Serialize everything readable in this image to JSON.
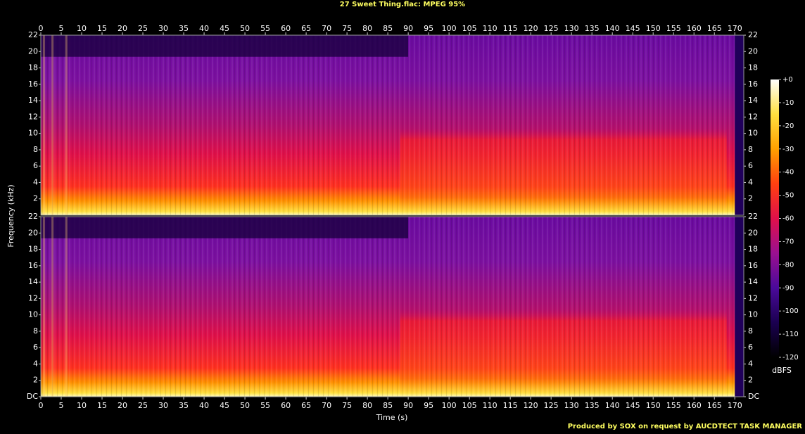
{
  "chart_data": [
    {
      "type": "spectrogram",
      "title": "27 Sweet Thing.flac: MPEG 95%",
      "ylabel": "Frequency (kHz)",
      "xlim": [
        0,
        172.2
      ],
      "ylim": [
        0,
        22
      ],
      "xticks": [
        0,
        5,
        10,
        15,
        20,
        25,
        30,
        35,
        40,
        45,
        50,
        55,
        60,
        65,
        70,
        75,
        80,
        85,
        90,
        95,
        100,
        105,
        110,
        115,
        120,
        125,
        130,
        135,
        140,
        145,
        150,
        155,
        160,
        165,
        170
      ],
      "yticks": [
        2,
        4,
        6,
        8,
        10,
        12,
        14,
        16,
        18,
        20,
        22
      ],
      "colorbar": {
        "label": "dBFS",
        "lim": [
          -120,
          0
        ],
        "ticks": [
          {
            "value": 0,
            "label": "+0"
          },
          -10,
          -20,
          -30,
          -40,
          -50,
          -60,
          -70,
          -80,
          -90,
          -100,
          -110,
          -120
        ],
        "colors": [
          "#000000",
          "#1a0050",
          "#4a0a9a",
          "#9a1090",
          "#e0104a",
          "#ff4010",
          "#ffa000",
          "#ffe040",
          "#ffffff"
        ]
      }
    },
    {
      "type": "spectrogram",
      "xlabel": "Time (s)",
      "xlim": [
        0,
        172.2
      ],
      "ylim": [
        0,
        22
      ],
      "xticks": [
        0,
        5,
        10,
        15,
        20,
        25,
        30,
        35,
        40,
        45,
        50,
        55,
        60,
        65,
        70,
        75,
        80,
        85,
        90,
        95,
        100,
        105,
        110,
        115,
        120,
        125,
        130,
        135,
        140,
        145,
        150,
        155,
        160,
        165,
        170
      ],
      "yticks": [
        {
          "value": 0,
          "label": "DC"
        },
        2,
        4,
        6,
        8,
        10,
        12,
        14,
        16,
        18,
        20,
        22
      ],
      "footer": "Produced by SOX on request by AUCDTECT TASK MANAGER"
    }
  ]
}
